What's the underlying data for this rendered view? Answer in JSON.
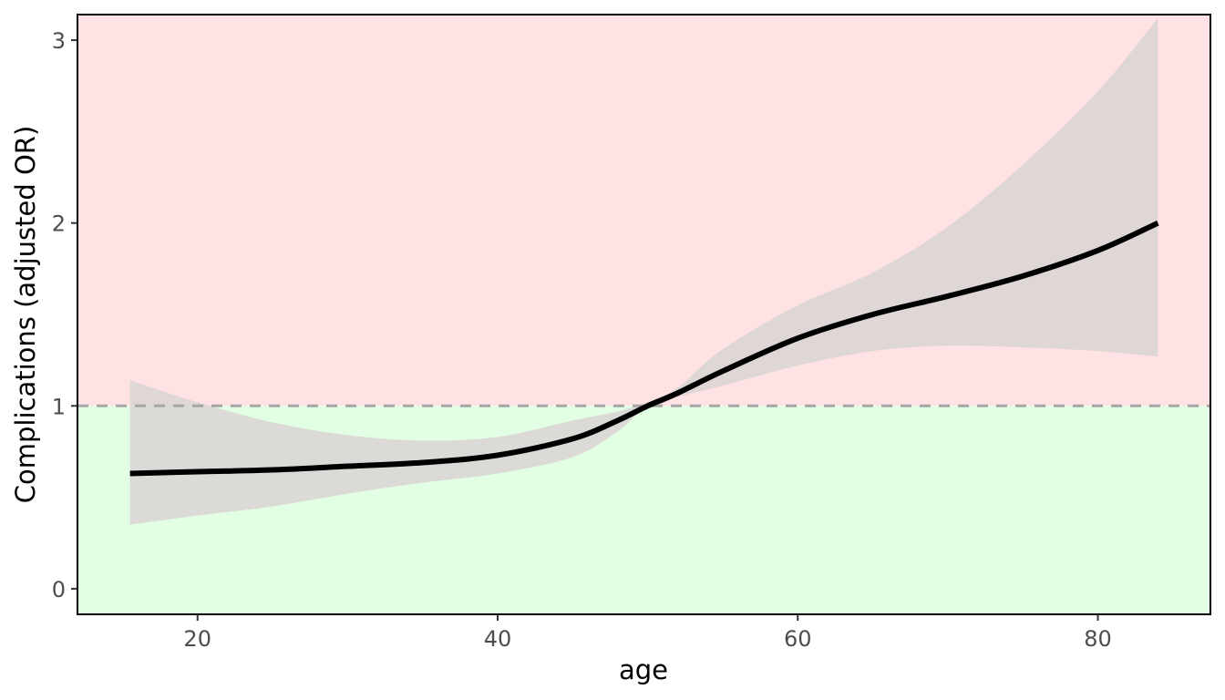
{
  "chart_data": {
    "type": "line",
    "xlabel": "age",
    "ylabel": "Complications (adjusted OR)",
    "xlim": [
      12,
      87.5
    ],
    "ylim": [
      -0.14,
      3.14
    ],
    "x_ticks": [
      20,
      40,
      60,
      80
    ],
    "y_ticks": [
      0,
      1,
      2,
      3
    ],
    "reference_line": {
      "y": 1,
      "style": "dashed",
      "color": "#a6a6a6"
    },
    "regions": [
      {
        "name": "above-1",
        "from": 1,
        "to": 3.14,
        "color": "#ffe2e4"
      },
      {
        "name": "below-1",
        "from": -0.14,
        "to": 1,
        "color": "#e2ffe3"
      }
    ],
    "grid": false,
    "legend": "none",
    "series": [
      {
        "line_color": "#000000",
        "ci_color": "#d9d3d3",
        "x": [
          15.5,
          20,
          25,
          30,
          35,
          40,
          45,
          48,
          50,
          52,
          55,
          60,
          65,
          70,
          75,
          80,
          84
        ],
        "y": [
          0.63,
          0.64,
          0.65,
          0.67,
          0.69,
          0.73,
          0.82,
          0.92,
          1.0,
          1.07,
          1.19,
          1.37,
          1.5,
          1.6,
          1.71,
          1.85,
          2.0
        ],
        "lower": [
          0.35,
          0.4,
          0.45,
          0.52,
          0.58,
          0.63,
          0.72,
          0.86,
          1.0,
          1.05,
          1.11,
          1.22,
          1.3,
          1.33,
          1.32,
          1.3,
          1.27
        ],
        "upper": [
          1.14,
          1.02,
          0.91,
          0.84,
          0.81,
          0.83,
          0.92,
          0.97,
          1.02,
          1.1,
          1.31,
          1.55,
          1.73,
          1.98,
          2.32,
          2.72,
          3.12
        ]
      }
    ]
  }
}
